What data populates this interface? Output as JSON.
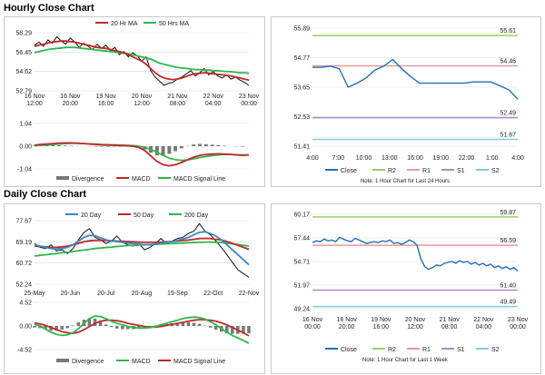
{
  "sections": {
    "hourly_title": "Hourly Close Chart",
    "daily_title": "Daily Close Chart"
  },
  "colors": {
    "close": "#1f6fba",
    "ma_red": "#c0282b",
    "ma_green": "#2db84b",
    "ma_blue": "#3a87c8",
    "price_black": "#111111",
    "r2": "#9fcc6a",
    "r1": "#e59a9a",
    "s1": "#b08cc8",
    "s2": "#86c8e0",
    "divergence": "#777777",
    "grid": "#d9d9d9"
  },
  "chart_data": [
    {
      "id": "hourly-price",
      "type": "line",
      "ylim": [
        52.79,
        58.29
      ],
      "yticks": [
        "58.29",
        "56.45",
        "54.62",
        "52.79"
      ],
      "xticks": [
        "16 Nov\n12:00",
        "16 Nov\n20:00",
        "19 Nov\n16:00",
        "20 Nov\n12:00",
        "21 Nov\n08:00",
        "22 Nov\n04:00",
        "23 Nov\n00:00"
      ],
      "legend": [
        "20 Hr MA",
        "50 Hrs MA"
      ],
      "price": [
        57.1,
        57.4,
        57.0,
        57.6,
        57.3,
        57.9,
        57.5,
        57.2,
        57.8,
        57.4,
        56.9,
        57.3,
        57.0,
        56.7,
        57.2,
        56.8,
        57.1,
        56.6,
        56.9,
        56.2,
        56.5,
        56.0,
        56.4,
        56.1,
        55.6,
        56.0,
        54.7,
        54.1,
        53.7,
        53.3,
        53.5,
        53.6,
        53.9,
        54.1,
        54.4,
        54.7,
        54.2,
        54.5,
        54.9,
        54.3,
        54.6,
        54.2,
        54.0,
        54.3,
        53.9,
        54.1,
        53.8,
        53.6,
        53.3
      ],
      "ma20": [
        57.0,
        57.1,
        57.2,
        57.3,
        57.4,
        57.45,
        57.5,
        57.5,
        57.45,
        57.4,
        57.3,
        57.2,
        57.1,
        57.0,
        56.9,
        56.85,
        56.8,
        56.7,
        56.6,
        56.5,
        56.4,
        56.2,
        56.0,
        55.8,
        55.6,
        55.3,
        54.9,
        54.5,
        54.2,
        54.0,
        53.9,
        53.85,
        53.9,
        54.0,
        54.15,
        54.3,
        54.4,
        54.45,
        54.5,
        54.45,
        54.4,
        54.35,
        54.3,
        54.25,
        54.2,
        54.1,
        54.0,
        53.9,
        53.8
      ],
      "ma50": [
        56.4,
        56.5,
        56.6,
        56.7,
        56.75,
        56.8,
        56.85,
        56.9,
        56.9,
        56.9,
        56.85,
        56.8,
        56.75,
        56.7,
        56.65,
        56.6,
        56.55,
        56.5,
        56.45,
        56.4,
        56.35,
        56.3,
        56.2,
        56.1,
        56.0,
        55.9,
        55.8,
        55.6,
        55.4,
        55.3,
        55.2,
        55.1,
        55.0,
        54.95,
        54.9,
        54.85,
        54.8,
        54.8,
        54.75,
        54.75,
        54.7,
        54.7,
        54.65,
        54.6,
        54.6,
        54.55,
        54.5,
        54.5,
        54.45
      ]
    },
    {
      "id": "hourly-macd",
      "type": "line",
      "ylim": [
        -1.04,
        1.04
      ],
      "yticks": [
        "1.04",
        "0.00",
        "-1.04"
      ],
      "legend": [
        "Divergence",
        "MACD",
        "MACD Signal Line"
      ],
      "macd": [
        0.05,
        0.08,
        0.1,
        0.12,
        0.14,
        0.15,
        0.15,
        0.14,
        0.12,
        0.1,
        0.08,
        0.06,
        0.05,
        0.04,
        0.03,
        0.02,
        0.0,
        -0.05,
        -0.2,
        -0.45,
        -0.7,
        -0.85,
        -0.9,
        -0.85,
        -0.75,
        -0.62,
        -0.5,
        -0.42,
        -0.38,
        -0.36,
        -0.35,
        -0.36,
        -0.38,
        -0.4,
        -0.42,
        -0.4
      ],
      "signal": [
        0.02,
        0.04,
        0.06,
        0.08,
        0.1,
        0.12,
        0.13,
        0.13,
        0.12,
        0.11,
        0.1,
        0.08,
        0.07,
        0.06,
        0.05,
        0.04,
        0.03,
        0.0,
        -0.06,
        -0.15,
        -0.28,
        -0.42,
        -0.55,
        -0.62,
        -0.65,
        -0.63,
        -0.58,
        -0.52,
        -0.47,
        -0.43,
        -0.4,
        -0.38,
        -0.38,
        -0.39,
        -0.4,
        -0.4
      ]
    },
    {
      "id": "hourly-pivot",
      "type": "line",
      "ylim": [
        51.41,
        55.89
      ],
      "yticks": [
        "55.89",
        "54.77",
        "53.65",
        "52.53",
        "51.41"
      ],
      "xticks": [
        "4:00",
        "7:00",
        "10:00",
        "13:00",
        "16:00",
        "19:00",
        "22:00",
        "1:00",
        "4:00"
      ],
      "levels": [
        {
          "name": "R2",
          "value": 55.61,
          "label": "55.61"
        },
        {
          "name": "R1",
          "value": 54.46,
          "label": "54.46"
        },
        {
          "name": "S1",
          "value": 52.49,
          "label": "52.49"
        },
        {
          "name": "S2",
          "value": 51.67,
          "label": "51.67"
        }
      ],
      "close": [
        54.4,
        54.4,
        54.45,
        54.35,
        53.65,
        53.8,
        54.0,
        54.3,
        54.45,
        54.7,
        54.35,
        54.05,
        53.8,
        53.8,
        53.8,
        53.8,
        53.8,
        53.8,
        53.85,
        53.85,
        53.85,
        53.7,
        53.55,
        53.2
      ],
      "legend": [
        "Close",
        "R2",
        "R1",
        "S1",
        "S2"
      ],
      "note": "Note: 1 Hour Chart for Last 24 Hours"
    },
    {
      "id": "daily-price",
      "type": "line",
      "ylim": [
        52.24,
        77.67
      ],
      "yticks": [
        "77.67",
        "69.19",
        "60.72",
        "52.24"
      ],
      "xticks": [
        "25-May",
        "20-Jun",
        "20-Jul",
        "20-Aug",
        "19-Sep",
        "22-Oct",
        "22-Nov"
      ],
      "legend": [
        "20 Day",
        "50 Day",
        "200 Day"
      ],
      "price": [
        68.5,
        67.0,
        66.5,
        68.0,
        65.5,
        66.0,
        64.5,
        66.5,
        70.0,
        73.0,
        74.5,
        71.0,
        70.0,
        68.5,
        69.5,
        71.5,
        69.0,
        68.0,
        67.5,
        68.5,
        66.0,
        67.0,
        68.5,
        70.5,
        68.5,
        69.5,
        70.5,
        71.0,
        72.5,
        73.5,
        76.5,
        73.5,
        72.0,
        69.5,
        67.0,
        64.0,
        61.0,
        58.0,
        56.5,
        55.0
      ],
      "ma20": [
        68.0,
        67.5,
        67.0,
        66.5,
        66.3,
        66.5,
        67.0,
        68.0,
        69.5,
        71.0,
        71.8,
        71.6,
        70.8,
        70.0,
        69.5,
        69.3,
        69.0,
        68.7,
        68.5,
        68.3,
        68.0,
        68.0,
        68.3,
        68.8,
        69.0,
        69.3,
        69.8,
        70.3,
        71.0,
        72.0,
        73.0,
        73.2,
        72.5,
        71.5,
        70.0,
        68.0,
        66.0,
        64.0,
        62.0,
        60.0
      ],
      "ma50": [
        67.5,
        67.3,
        67.2,
        67.0,
        67.0,
        67.2,
        67.5,
        68.0,
        68.6,
        69.2,
        69.6,
        69.8,
        69.8,
        69.7,
        69.6,
        69.5,
        69.4,
        69.3,
        69.2,
        69.1,
        69.0,
        69.0,
        69.0,
        69.1,
        69.2,
        69.3,
        69.5,
        69.7,
        69.9,
        70.2,
        70.5,
        70.6,
        70.5,
        70.2,
        69.9,
        69.3,
        68.6,
        67.8,
        67.0,
        66.2
      ],
      "ma200": [
        63.5,
        63.8,
        64.0,
        64.3,
        64.5,
        64.8,
        65.0,
        65.3,
        65.6,
        65.9,
        66.2,
        66.5,
        66.7,
        66.9,
        67.1,
        67.3,
        67.5,
        67.7,
        67.8,
        67.9,
        68.0,
        68.1,
        68.2,
        68.3,
        68.4,
        68.5,
        68.6,
        68.7,
        68.8,
        68.9,
        69.0,
        69.1,
        69.1,
        69.0,
        68.9,
        68.7,
        68.4,
        68.1,
        67.8,
        67.5
      ]
    },
    {
      "id": "daily-macd",
      "type": "line",
      "ylim": [
        -4.52,
        4.52
      ],
      "yticks": [
        "4.52",
        "0.00",
        "-4.52"
      ],
      "legend": [
        "Divergence",
        "MACD",
        "MACD Signal Line"
      ],
      "macd": [
        0.3,
        0.0,
        -0.6,
        -1.2,
        -1.6,
        -1.8,
        -1.7,
        -1.3,
        -0.5,
        0.5,
        1.4,
        1.9,
        1.8,
        1.4,
        0.9,
        0.5,
        0.2,
        -0.1,
        -0.3,
        -0.4,
        -0.4,
        -0.3,
        -0.1,
        0.2,
        0.5,
        0.8,
        1.1,
        1.4,
        1.6,
        1.7,
        1.6,
        1.3,
        0.8,
        0.2,
        -0.5,
        -1.2,
        -1.8,
        -2.3,
        -2.8,
        -3.3
      ],
      "signal": [
        0.6,
        0.4,
        0.1,
        -0.3,
        -0.7,
        -1.1,
        -1.3,
        -1.4,
        -1.2,
        -0.7,
        -0.1,
        0.5,
        0.9,
        1.1,
        1.1,
        1.0,
        0.8,
        0.5,
        0.3,
        0.1,
        -0.1,
        -0.2,
        -0.2,
        -0.1,
        0.1,
        0.3,
        0.5,
        0.7,
        0.9,
        1.1,
        1.2,
        1.2,
        1.1,
        0.9,
        0.6,
        0.2,
        -0.3,
        -0.8,
        -1.3,
        -1.9
      ]
    },
    {
      "id": "daily-pivot",
      "type": "line",
      "ylim": [
        49.24,
        60.17
      ],
      "yticks": [
        "60.17",
        "57.44",
        "54.71",
        "51.97",
        "49.24"
      ],
      "xticks": [
        "16 Nov\n00:00",
        "16 Nov\n20:00",
        "19 Nov\n16:00",
        "20 Nov\n12:00",
        "21 Nov\n08:00",
        "22 Nov\n04:00",
        "23 Nov\n00:00"
      ],
      "levels": [
        {
          "name": "R2",
          "value": 59.87,
          "label": "59.87"
        },
        {
          "name": "R1",
          "value": 56.59,
          "label": "56.59"
        },
        {
          "name": "S1",
          "value": 51.4,
          "label": "51.40"
        },
        {
          "name": "S2",
          "value": 49.49,
          "label": "49.49"
        }
      ],
      "close": [
        56.9,
        57.1,
        57.0,
        57.3,
        57.1,
        57.2,
        57.0,
        57.5,
        57.3,
        57.1,
        57.0,
        57.4,
        57.2,
        57.0,
        56.8,
        56.9,
        57.0,
        56.9,
        57.1,
        57.0,
        57.2,
        56.8,
        56.9,
        56.7,
        56.9,
        57.2,
        57.0,
        56.6,
        55.0,
        54.1,
        53.8,
        54.0,
        54.3,
        54.2,
        54.5,
        54.6,
        54.7,
        54.5,
        54.8,
        54.6,
        54.7,
        54.4,
        54.6,
        54.3,
        54.5,
        54.2,
        54.4,
        54.0,
        54.2,
        53.9,
        54.1,
        53.8,
        54.0,
        53.6
      ],
      "legend": [
        "Close",
        "R2",
        "R1",
        "S1",
        "S2"
      ],
      "note": "Note: 1 Hour Chart for Last 1 Week"
    }
  ]
}
